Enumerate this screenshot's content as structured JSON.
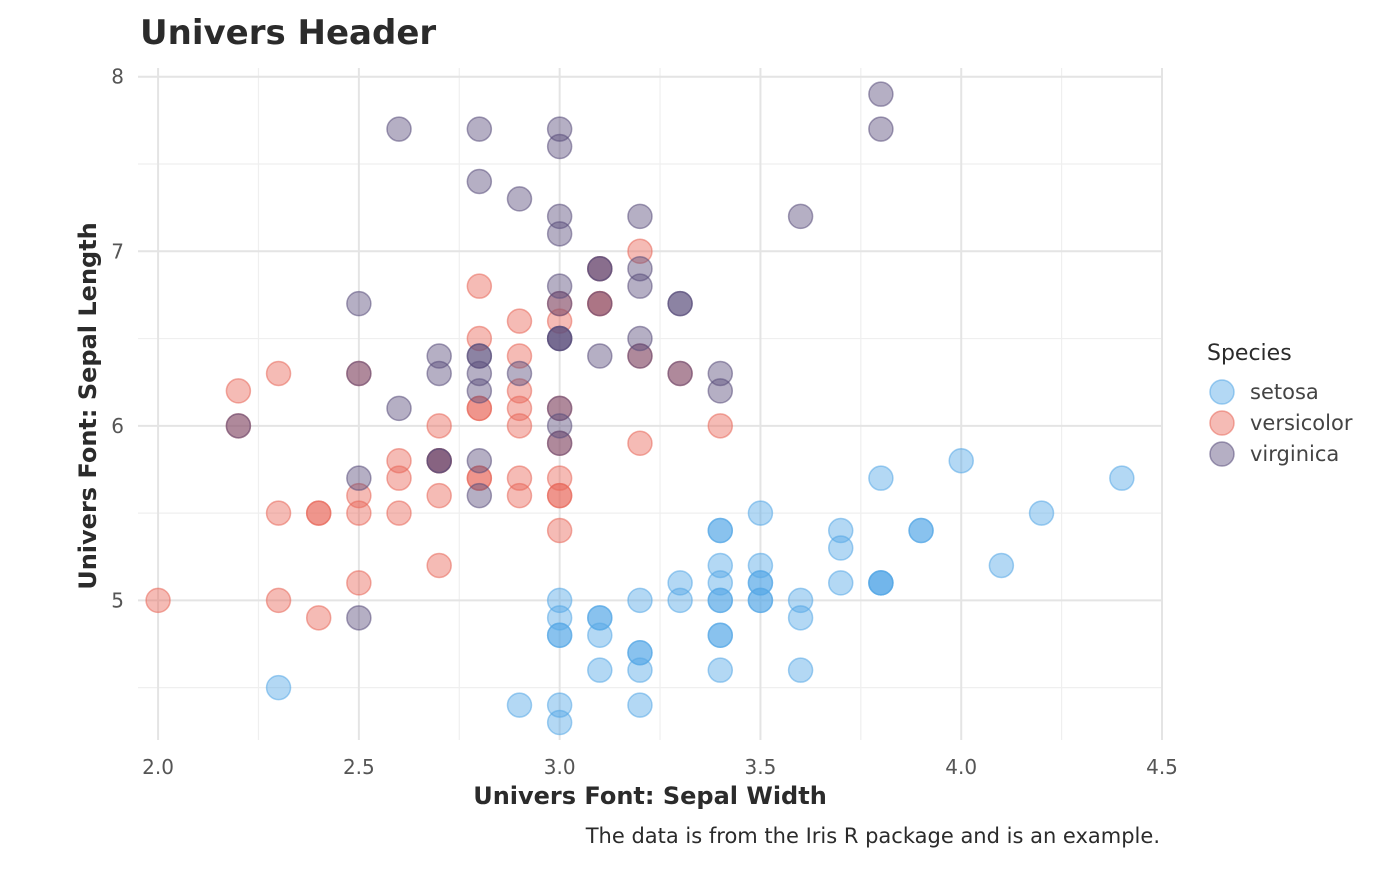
{
  "chart_data": {
    "type": "scatter",
    "title": "Univers Header",
    "xlabel": "Univers Font: Sepal Width",
    "ylabel": "Univers Font: Sepal Length",
    "caption": "The data is from the Iris R package and is an example.",
    "xlim": [
      1.95,
      4.5
    ],
    "ylim": [
      4.2,
      8.05
    ],
    "x_ticks": [
      2.0,
      2.5,
      3.0,
      3.5,
      4.0,
      4.5
    ],
    "x_tick_labels": [
      "2.0",
      "2.5",
      "3.0",
      "3.5",
      "4.0",
      "4.5"
    ],
    "y_ticks": [
      5,
      6,
      7,
      8
    ],
    "y_tick_labels": [
      "5",
      "6",
      "7",
      "8"
    ],
    "grid": true,
    "legend": {
      "title": "Species",
      "position": "right"
    },
    "series": [
      {
        "name": "setosa",
        "color": "#56a8e6",
        "points": [
          [
            3.5,
            5.1
          ],
          [
            3.0,
            4.9
          ],
          [
            3.2,
            4.7
          ],
          [
            3.1,
            4.6
          ],
          [
            3.6,
            5.0
          ],
          [
            3.9,
            5.4
          ],
          [
            3.4,
            4.6
          ],
          [
            3.4,
            5.0
          ],
          [
            2.9,
            4.4
          ],
          [
            3.1,
            4.9
          ],
          [
            3.7,
            5.4
          ],
          [
            3.4,
            4.8
          ],
          [
            3.0,
            4.8
          ],
          [
            3.0,
            4.3
          ],
          [
            4.0,
            5.8
          ],
          [
            4.4,
            5.7
          ],
          [
            3.9,
            5.4
          ],
          [
            3.5,
            5.1
          ],
          [
            3.8,
            5.7
          ],
          [
            3.8,
            5.1
          ],
          [
            3.4,
            5.4
          ],
          [
            3.7,
            5.1
          ],
          [
            3.6,
            4.6
          ],
          [
            3.3,
            5.1
          ],
          [
            3.4,
            4.8
          ],
          [
            3.0,
            5.0
          ],
          [
            3.4,
            5.0
          ],
          [
            3.5,
            5.2
          ],
          [
            3.4,
            5.2
          ],
          [
            3.2,
            4.7
          ],
          [
            3.1,
            4.8
          ],
          [
            3.4,
            5.4
          ],
          [
            4.1,
            5.2
          ],
          [
            4.2,
            5.5
          ],
          [
            3.1,
            4.9
          ],
          [
            3.2,
            5.0
          ],
          [
            3.5,
            5.5
          ],
          [
            3.6,
            4.9
          ],
          [
            3.0,
            4.4
          ],
          [
            3.4,
            5.1
          ],
          [
            3.5,
            5.0
          ],
          [
            2.3,
            4.5
          ],
          [
            3.2,
            4.4
          ],
          [
            3.5,
            5.0
          ],
          [
            3.8,
            5.1
          ],
          [
            3.0,
            4.8
          ],
          [
            3.8,
            5.1
          ],
          [
            3.2,
            4.6
          ],
          [
            3.7,
            5.3
          ],
          [
            3.3,
            5.0
          ]
        ]
      },
      {
        "name": "versicolor",
        "color": "#e8685a",
        "points": [
          [
            3.2,
            7.0
          ],
          [
            3.2,
            6.4
          ],
          [
            3.1,
            6.9
          ],
          [
            2.3,
            5.5
          ],
          [
            2.8,
            6.5
          ],
          [
            2.8,
            5.7
          ],
          [
            3.3,
            6.3
          ],
          [
            2.4,
            4.9
          ],
          [
            2.9,
            6.6
          ],
          [
            2.7,
            5.2
          ],
          [
            2.0,
            5.0
          ],
          [
            3.0,
            5.9
          ],
          [
            2.2,
            6.0
          ],
          [
            2.9,
            6.1
          ],
          [
            2.9,
            5.6
          ],
          [
            3.1,
            6.7
          ],
          [
            3.0,
            5.6
          ],
          [
            2.7,
            5.8
          ],
          [
            2.2,
            6.2
          ],
          [
            2.5,
            5.6
          ],
          [
            3.2,
            5.9
          ],
          [
            2.8,
            6.1
          ],
          [
            2.5,
            6.3
          ],
          [
            2.8,
            6.1
          ],
          [
            2.9,
            6.4
          ],
          [
            3.0,
            6.6
          ],
          [
            2.8,
            6.8
          ],
          [
            3.0,
            6.7
          ],
          [
            2.9,
            6.0
          ],
          [
            2.6,
            5.7
          ],
          [
            2.4,
            5.5
          ],
          [
            2.4,
            5.5
          ],
          [
            2.7,
            5.8
          ],
          [
            2.7,
            6.0
          ],
          [
            3.0,
            5.4
          ],
          [
            3.4,
            6.0
          ],
          [
            3.1,
            6.7
          ],
          [
            2.3,
            6.3
          ],
          [
            3.0,
            5.6
          ],
          [
            2.5,
            5.5
          ],
          [
            2.6,
            5.5
          ],
          [
            3.0,
            6.1
          ],
          [
            2.6,
            5.8
          ],
          [
            2.3,
            5.0
          ],
          [
            2.7,
            5.6
          ],
          [
            3.0,
            5.7
          ],
          [
            2.9,
            5.7
          ],
          [
            2.9,
            6.2
          ],
          [
            2.5,
            5.1
          ],
          [
            2.8,
            5.7
          ]
        ]
      },
      {
        "name": "virginica",
        "color": "#5a4e7c",
        "points": [
          [
            3.3,
            6.3
          ],
          [
            2.7,
            5.8
          ],
          [
            3.0,
            7.1
          ],
          [
            2.9,
            6.3
          ],
          [
            3.0,
            6.5
          ],
          [
            3.0,
            7.6
          ],
          [
            2.5,
            4.9
          ],
          [
            2.9,
            7.3
          ],
          [
            2.5,
            6.7
          ],
          [
            3.6,
            7.2
          ],
          [
            3.2,
            6.5
          ],
          [
            2.7,
            6.4
          ],
          [
            3.0,
            6.8
          ],
          [
            2.5,
            5.7
          ],
          [
            2.8,
            5.8
          ],
          [
            3.2,
            6.4
          ],
          [
            3.0,
            6.5
          ],
          [
            3.8,
            7.7
          ],
          [
            2.6,
            7.7
          ],
          [
            2.2,
            6.0
          ],
          [
            3.2,
            6.9
          ],
          [
            2.8,
            5.6
          ],
          [
            2.8,
            7.7
          ],
          [
            2.7,
            6.3
          ],
          [
            3.3,
            6.7
          ],
          [
            3.2,
            7.2
          ],
          [
            2.8,
            6.2
          ],
          [
            3.0,
            6.1
          ],
          [
            2.8,
            6.4
          ],
          [
            3.0,
            7.2
          ],
          [
            2.8,
            7.4
          ],
          [
            3.8,
            7.9
          ],
          [
            2.8,
            6.4
          ],
          [
            2.8,
            6.3
          ],
          [
            2.6,
            6.1
          ],
          [
            3.0,
            7.7
          ],
          [
            3.4,
            6.3
          ],
          [
            3.1,
            6.4
          ],
          [
            3.0,
            6.0
          ],
          [
            3.1,
            6.9
          ],
          [
            3.1,
            6.7
          ],
          [
            3.1,
            6.9
          ],
          [
            2.7,
            5.8
          ],
          [
            3.2,
            6.8
          ],
          [
            3.3,
            6.7
          ],
          [
            3.0,
            6.7
          ],
          [
            2.5,
            6.3
          ],
          [
            3.0,
            6.5
          ],
          [
            3.4,
            6.2
          ],
          [
            3.0,
            5.9
          ]
        ]
      }
    ]
  }
}
